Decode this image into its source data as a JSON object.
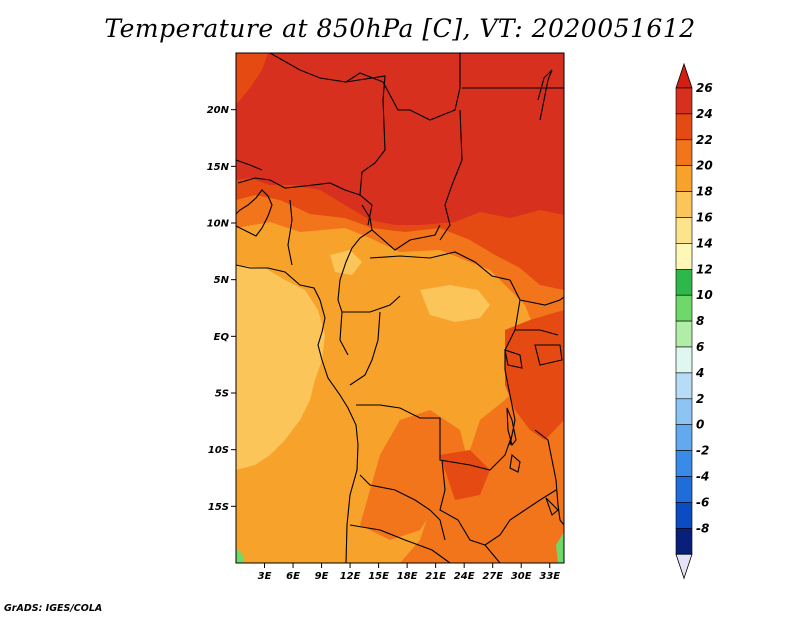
{
  "title": "Temperature at 850hPa [C], VT: 2020051612",
  "credit": "GrADS: IGES/COLA",
  "map": {
    "lon_range": [
      0,
      34.5
    ],
    "lat_range": [
      -20,
      25
    ],
    "lat_ticks": [
      {
        "label": "20N",
        "value": 20
      },
      {
        "label": "15N",
        "value": 15
      },
      {
        "label": "10N",
        "value": 10
      },
      {
        "label": "5N",
        "value": 5
      },
      {
        "label": "EQ",
        "value": 0
      },
      {
        "label": "5S",
        "value": -5
      },
      {
        "label": "10S",
        "value": -10
      },
      {
        "label": "15S",
        "value": -15
      }
    ],
    "lon_ticks": [
      {
        "label": "3E",
        "value": 3
      },
      {
        "label": "6E",
        "value": 6
      },
      {
        "label": "9E",
        "value": 9
      },
      {
        "label": "12E",
        "value": 12
      },
      {
        "label": "15E",
        "value": 15
      },
      {
        "label": "18E",
        "value": 18
      },
      {
        "label": "21E",
        "value": 21
      },
      {
        "label": "24E",
        "value": 24
      },
      {
        "label": "27E",
        "value": 27
      },
      {
        "label": "30E",
        "value": 30
      },
      {
        "label": "33E",
        "value": 33
      }
    ]
  },
  "colorbar": {
    "levels": [
      {
        "label": "26",
        "color": "#d7301f"
      },
      {
        "label": "24",
        "color": "#e44a12"
      },
      {
        "label": "22",
        "color": "#f2741b"
      },
      {
        "label": "20",
        "color": "#f7a22a"
      },
      {
        "label": "18",
        "color": "#fbc55a"
      },
      {
        "label": "16",
        "color": "#fde38c"
      },
      {
        "label": "14",
        "color": "#fdf7b8"
      },
      {
        "label": "12",
        "color": "#2fb84a"
      },
      {
        "label": "10",
        "color": "#6fd86a"
      },
      {
        "label": "8",
        "color": "#b2eda8"
      },
      {
        "label": "6",
        "color": "#e0f7f1"
      },
      {
        "label": "4",
        "color": "#b7dcf7"
      },
      {
        "label": "2",
        "color": "#8cc4f4"
      },
      {
        "label": "0",
        "color": "#62a9f0"
      },
      {
        "label": "-2",
        "color": "#3a8be8"
      },
      {
        "label": "-4",
        "color": "#1f6ddb"
      },
      {
        "label": "-6",
        "color": "#0b4cc2"
      },
      {
        "label": "-8",
        "color": "#08207a"
      }
    ],
    "top_triangle_color": "#d31e12",
    "bottom_triangle_color": "#e4e3f7"
  }
}
